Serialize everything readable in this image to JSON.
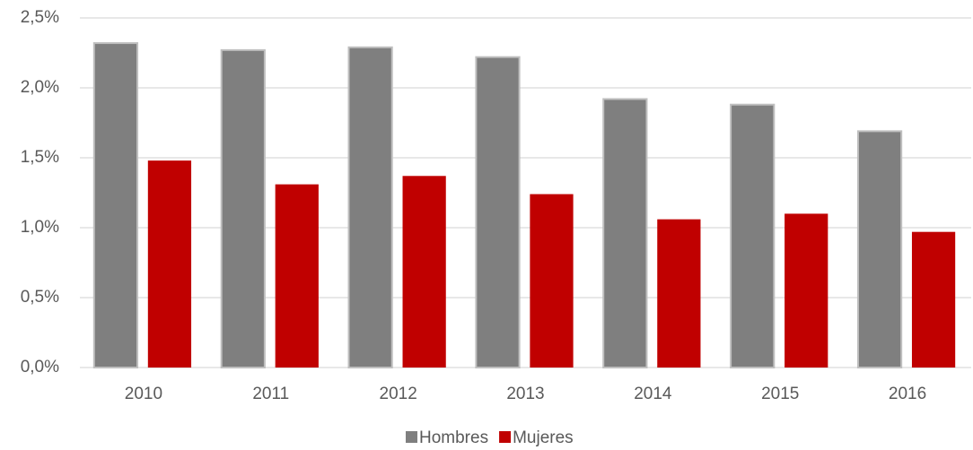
{
  "chart_data": {
    "type": "bar",
    "categories": [
      "2010",
      "2011",
      "2012",
      "2013",
      "2014",
      "2015",
      "2016"
    ],
    "series": [
      {
        "name": "Hombres",
        "color": "#7f7f7f",
        "values": [
          2.32,
          2.27,
          2.29,
          2.22,
          1.92,
          1.88,
          1.69
        ]
      },
      {
        "name": "Mujeres",
        "color": "#c00000",
        "values": [
          1.48,
          1.31,
          1.37,
          1.24,
          1.06,
          1.1,
          0.97
        ]
      }
    ],
    "ylim": [
      0,
      2.5
    ],
    "yticks": [
      {
        "value": 0,
        "label": "0,0%"
      },
      {
        "value": 0.5,
        "label": "0,5%"
      },
      {
        "value": 1.0,
        "label": "1,0%"
      },
      {
        "value": 1.5,
        "label": "1,5%"
      },
      {
        "value": 2.0,
        "label": "2,0%"
      },
      {
        "value": 2.5,
        "label": "2,5%"
      }
    ],
    "grid": true,
    "legend": "bottom"
  }
}
